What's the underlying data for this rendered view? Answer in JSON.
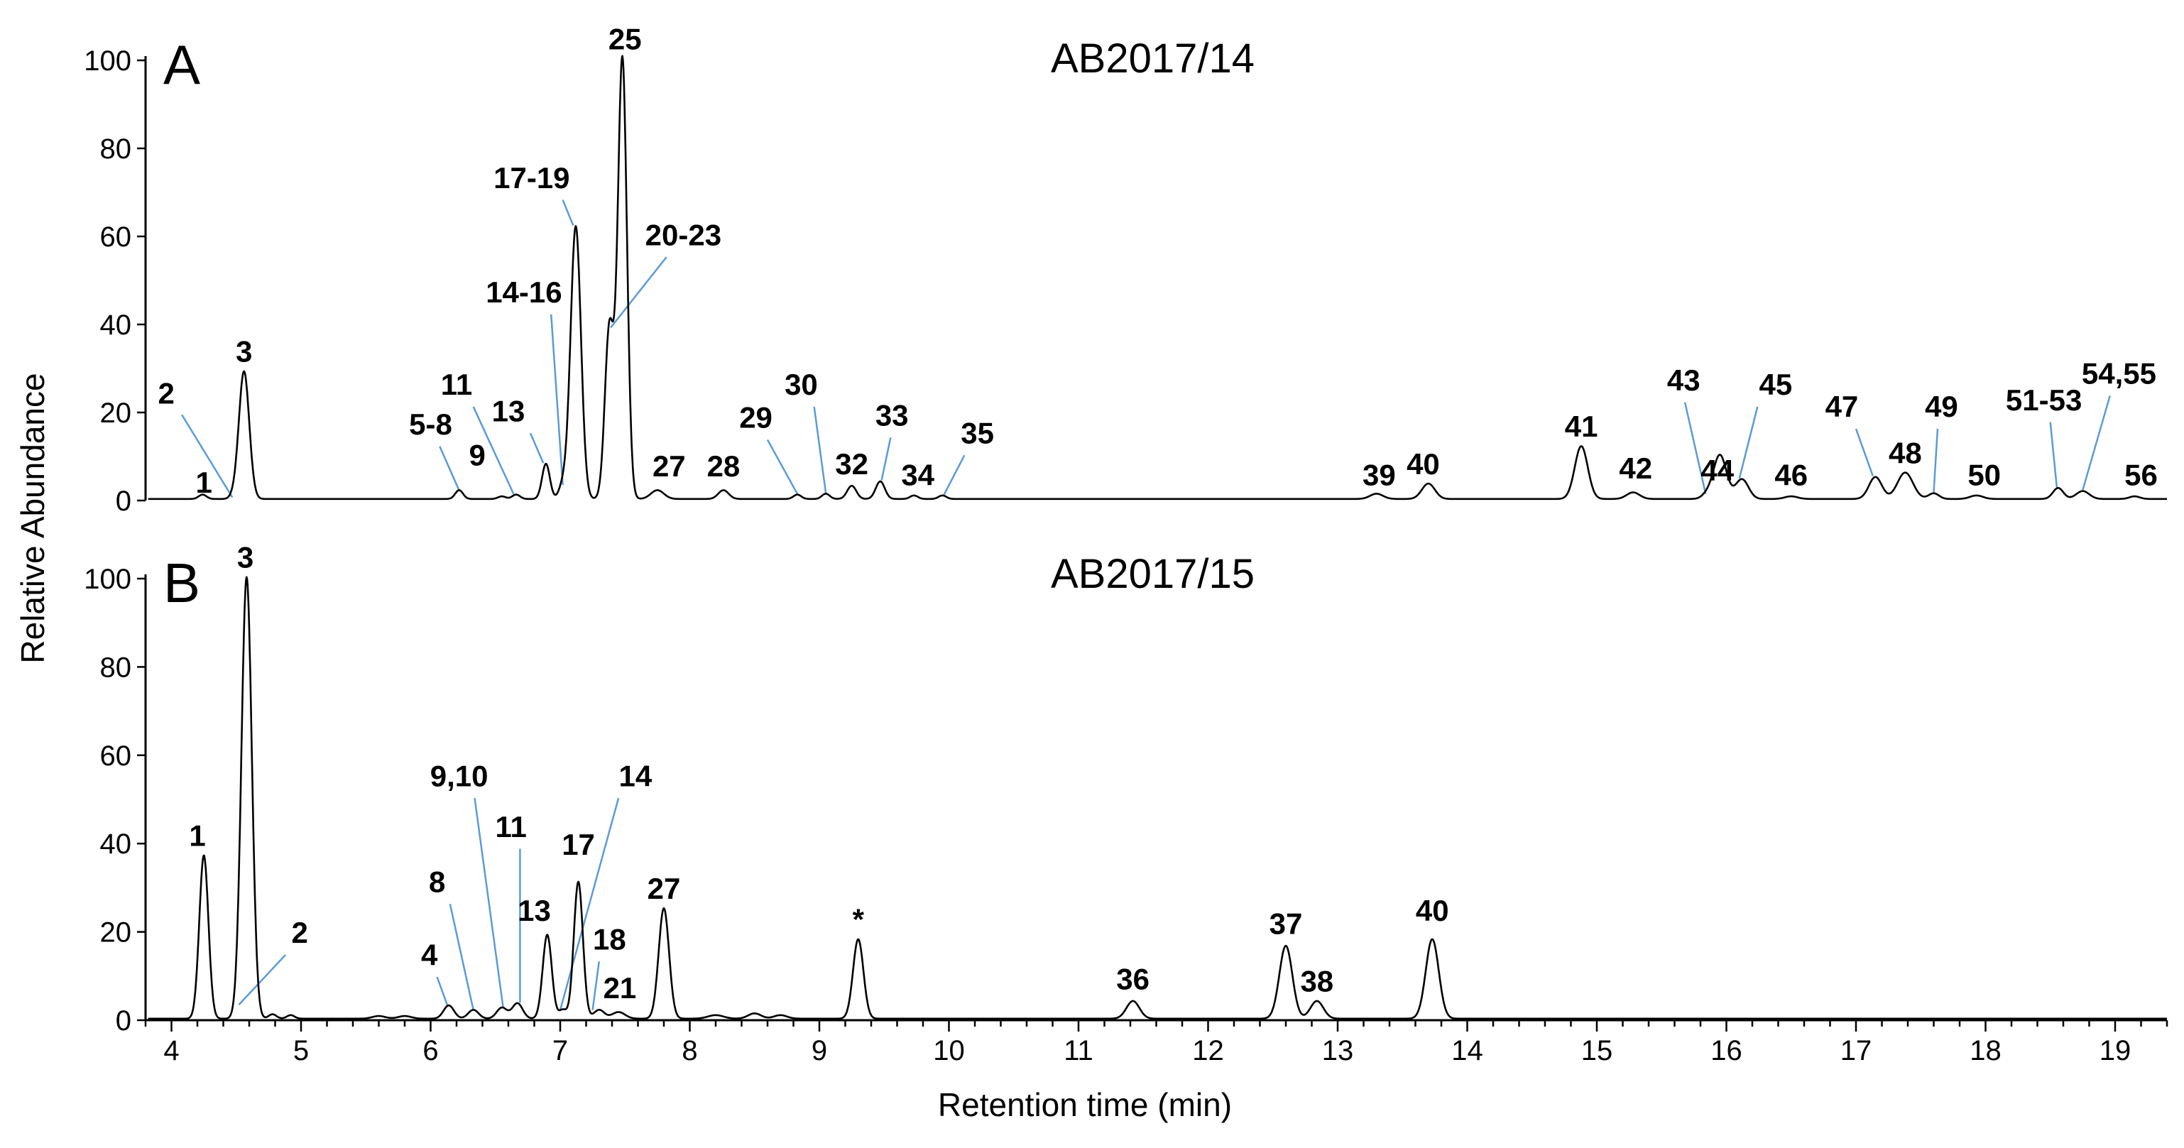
{
  "chart_data": {
    "type": "line",
    "xlabel": "Retention time (min)",
    "ylabel": "Relative Abundance",
    "xlim": [
      3.8,
      19.4
    ],
    "ylim": [
      0,
      100
    ],
    "x_ticks": [
      "4",
      "5",
      "6",
      "7",
      "8",
      "9",
      "10",
      "11",
      "12",
      "13",
      "14",
      "15",
      "16",
      "17",
      "18",
      "19"
    ],
    "y_ticks": [
      "0",
      "20",
      "40",
      "60",
      "80",
      "100"
    ],
    "grid": false,
    "panels": [
      {
        "letter": "A",
        "title": "AB2017/14",
        "peaks": [
          {
            "rt": 4.24,
            "height": 1,
            "width": 0.03
          },
          {
            "rt": 4.48,
            "height": 0.5,
            "width": 0.03
          },
          {
            "rt": 4.56,
            "height": 29,
            "width": 0.04
          },
          {
            "rt": 6.22,
            "height": 2,
            "width": 0.03
          },
          {
            "rt": 6.55,
            "height": 0.6,
            "width": 0.03
          },
          {
            "rt": 6.66,
            "height": 1,
            "width": 0.03
          },
          {
            "rt": 6.89,
            "height": 8,
            "width": 0.03
          },
          {
            "rt": 7.02,
            "height": 3,
            "width": 0.03
          },
          {
            "rt": 7.12,
            "height": 62,
            "width": 0.04
          },
          {
            "rt": 7.38,
            "height": 39,
            "width": 0.035
          },
          {
            "rt": 7.48,
            "height": 100,
            "width": 0.035
          },
          {
            "rt": 7.75,
            "height": 2,
            "width": 0.05
          },
          {
            "rt": 8.26,
            "height": 2,
            "width": 0.04
          },
          {
            "rt": 8.83,
            "height": 1,
            "width": 0.03
          },
          {
            "rt": 9.05,
            "height": 1.2,
            "width": 0.03
          },
          {
            "rt": 9.25,
            "height": 3,
            "width": 0.035
          },
          {
            "rt": 9.47,
            "height": 4,
            "width": 0.035
          },
          {
            "rt": 9.73,
            "height": 0.8,
            "width": 0.03
          },
          {
            "rt": 9.95,
            "height": 0.8,
            "width": 0.03
          },
          {
            "rt": 13.3,
            "height": 1.2,
            "width": 0.05
          },
          {
            "rt": 13.7,
            "height": 3.5,
            "width": 0.05
          },
          {
            "rt": 14.88,
            "height": 12,
            "width": 0.05
          },
          {
            "rt": 15.28,
            "height": 1.5,
            "width": 0.05
          },
          {
            "rt": 15.85,
            "height": 1,
            "width": 0.04
          },
          {
            "rt": 15.95,
            "height": 10,
            "width": 0.05
          },
          {
            "rt": 16.12,
            "height": 4.5,
            "width": 0.05
          },
          {
            "rt": 16.5,
            "height": 0.6,
            "width": 0.05
          },
          {
            "rt": 17.15,
            "height": 5,
            "width": 0.05
          },
          {
            "rt": 17.38,
            "height": 6,
            "width": 0.06
          },
          {
            "rt": 17.6,
            "height": 1.3,
            "width": 0.04
          },
          {
            "rt": 17.93,
            "height": 0.8,
            "width": 0.05
          },
          {
            "rt": 18.56,
            "height": 2.5,
            "width": 0.04
          },
          {
            "rt": 18.75,
            "height": 1.8,
            "width": 0.05
          },
          {
            "rt": 19.15,
            "height": 0.6,
            "width": 0.04
          }
        ],
        "labels": [
          {
            "text": "1",
            "x": 4.25,
            "y": 1.8
          },
          {
            "text": "2",
            "x": 3.96,
            "y": 22,
            "line": [
              4.08,
              19.5,
              4.47,
              0.7
            ]
          },
          {
            "text": "3",
            "x": 4.56,
            "y": 31.5
          },
          {
            "text": "5-8",
            "x": 6.0,
            "y": 15,
            "line": [
              6.07,
              12.3,
              6.22,
              2.3
            ]
          },
          {
            "text": "9",
            "x": 6.36,
            "y": 8
          },
          {
            "text": "11",
            "x": 6.2,
            "y": 24,
            "line": [
              6.33,
              21.3,
              6.64,
              1.5
            ]
          },
          {
            "text": "13",
            "x": 6.6,
            "y": 18,
            "line": [
              6.77,
              15.3,
              6.87,
              8.5
            ]
          },
          {
            "text": "14-16",
            "x": 6.72,
            "y": 45,
            "line": [
              6.93,
              42.3,
              7.02,
              3.5
            ]
          },
          {
            "text": "17-19",
            "x": 6.78,
            "y": 71,
            "line": [
              7.02,
              68.3,
              7.1,
              62.5
            ]
          },
          {
            "text": "20-23",
            "x": 7.95,
            "y": 58,
            "line": [
              7.82,
              55.3,
              7.39,
              39.3
            ]
          },
          {
            "text": "25",
            "x": 7.5,
            "y": 102.5
          },
          {
            "text": "27",
            "x": 7.84,
            "y": 5.5
          },
          {
            "text": "28",
            "x": 8.26,
            "y": 5.5
          },
          {
            "text": "29",
            "x": 8.51,
            "y": 16.5,
            "line": [
              8.6,
              13.8,
              8.83,
              1.5
            ]
          },
          {
            "text": "30",
            "x": 8.86,
            "y": 24,
            "line": [
              8.96,
              21.3,
              9.05,
              1.7
            ]
          },
          {
            "text": "32",
            "x": 9.25,
            "y": 6
          },
          {
            "text": "33",
            "x": 9.56,
            "y": 17,
            "line": [
              9.55,
              14.3,
              9.48,
              4.6
            ]
          },
          {
            "text": "34",
            "x": 9.76,
            "y": 3.5
          },
          {
            "text": "35",
            "x": 10.22,
            "y": 13,
            "line": [
              10.12,
              10.3,
              9.96,
              1.2
            ]
          },
          {
            "text": "39",
            "x": 13.32,
            "y": 3.5
          },
          {
            "text": "40",
            "x": 13.66,
            "y": 6
          },
          {
            "text": "41",
            "x": 14.88,
            "y": 14.5
          },
          {
            "text": "42",
            "x": 15.3,
            "y": 5
          },
          {
            "text": "43",
            "x": 15.67,
            "y": 25,
            "line": [
              15.68,
              22.3,
              15.84,
              1.5
            ]
          },
          {
            "text": "44",
            "x": 15.93,
            "y": 4.5
          },
          {
            "text": "45",
            "x": 16.38,
            "y": 24,
            "line": [
              16.24,
              21.3,
              16.1,
              5
            ]
          },
          {
            "text": "46",
            "x": 16.5,
            "y": 3.5
          },
          {
            "text": "47",
            "x": 16.89,
            "y": 19,
            "line": [
              17.0,
              16.3,
              17.13,
              5.6
            ]
          },
          {
            "text": "48",
            "x": 17.38,
            "y": 8.5
          },
          {
            "text": "49",
            "x": 17.66,
            "y": 19,
            "line": [
              17.63,
              16.3,
              17.6,
              1.9
            ]
          },
          {
            "text": "50",
            "x": 17.99,
            "y": 3.5
          },
          {
            "text": "51-53",
            "x": 18.45,
            "y": 20.5,
            "line": [
              18.5,
              17.8,
              18.55,
              3
            ]
          },
          {
            "text": "54,55",
            "x": 19.03,
            "y": 26.5,
            "line": [
              18.96,
              23.8,
              18.75,
              2.4
            ]
          },
          {
            "text": "56",
            "x": 19.2,
            "y": 3.5
          }
        ]
      },
      {
        "letter": "B",
        "title": "AB2017/15",
        "peaks": [
          {
            "rt": 4.25,
            "height": 37,
            "width": 0.035
          },
          {
            "rt": 4.58,
            "height": 100,
            "width": 0.04
          },
          {
            "rt": 4.78,
            "height": 1,
            "width": 0.03
          },
          {
            "rt": 4.92,
            "height": 0.8,
            "width": 0.03
          },
          {
            "rt": 5.6,
            "height": 0.6,
            "width": 0.05
          },
          {
            "rt": 5.8,
            "height": 0.6,
            "width": 0.05
          },
          {
            "rt": 6.14,
            "height": 3,
            "width": 0.04
          },
          {
            "rt": 6.33,
            "height": 2,
            "width": 0.04
          },
          {
            "rt": 6.55,
            "height": 2.5,
            "width": 0.04
          },
          {
            "rt": 6.67,
            "height": 3.5,
            "width": 0.04
          },
          {
            "rt": 6.9,
            "height": 19,
            "width": 0.035
          },
          {
            "rt": 7.02,
            "height": 2,
            "width": 0.03
          },
          {
            "rt": 7.14,
            "height": 31,
            "width": 0.035
          },
          {
            "rt": 7.3,
            "height": 2,
            "width": 0.04
          },
          {
            "rt": 7.45,
            "height": 1.5,
            "width": 0.05
          },
          {
            "rt": 7.8,
            "height": 25,
            "width": 0.04
          },
          {
            "rt": 8.2,
            "height": 0.8,
            "width": 0.06
          },
          {
            "rt": 8.5,
            "height": 1.2,
            "width": 0.05
          },
          {
            "rt": 8.7,
            "height": 0.8,
            "width": 0.05
          },
          {
            "rt": 9.3,
            "height": 18,
            "width": 0.04
          },
          {
            "rt": 11.42,
            "height": 4,
            "width": 0.05
          },
          {
            "rt": 12.6,
            "height": 16.5,
            "width": 0.05
          },
          {
            "rt": 12.84,
            "height": 4,
            "width": 0.05
          },
          {
            "rt": 13.73,
            "height": 18,
            "width": 0.05
          }
        ],
        "labels": [
          {
            "text": "1",
            "x": 4.2,
            "y": 39.5
          },
          {
            "text": "2",
            "x": 4.99,
            "y": 17.5,
            "line": [
              4.88,
              14.8,
              4.52,
              3.5
            ]
          },
          {
            "text": "3",
            "x": 4.57,
            "y": 102.5
          },
          {
            "text": "4",
            "x": 5.99,
            "y": 12.5,
            "line": [
              6.05,
              9.8,
              6.13,
              3.3
            ]
          },
          {
            "text": "8",
            "x": 6.05,
            "y": 29,
            "line": [
              6.15,
              26.3,
              6.33,
              2.3
            ]
          },
          {
            "text": "9,10",
            "x": 6.22,
            "y": 53,
            "line": [
              6.34,
              50.3,
              6.56,
              2.8
            ]
          },
          {
            "text": "11",
            "x": 6.62,
            "y": 41.5,
            "line": [
              6.69,
              38.8,
              6.69,
              4
            ]
          },
          {
            "text": "13",
            "x": 6.8,
            "y": 22.5
          },
          {
            "text": "14",
            "x": 7.58,
            "y": 53,
            "line": [
              7.45,
              50.3,
              7.0,
              2.3
            ]
          },
          {
            "text": "17",
            "x": 7.14,
            "y": 37.5
          },
          {
            "text": "18",
            "x": 7.38,
            "y": 16,
            "line": [
              7.3,
              13.3,
              7.25,
              2.3
            ]
          },
          {
            "text": "21",
            "x": 7.46,
            "y": 5
          },
          {
            "text": "27",
            "x": 7.8,
            "y": 27.5
          },
          {
            "text": "*",
            "x": 9.3,
            "y": 20.5
          },
          {
            "text": "36",
            "x": 11.42,
            "y": 7
          },
          {
            "text": "37",
            "x": 12.6,
            "y": 19.5
          },
          {
            "text": "38",
            "x": 12.84,
            "y": 6.5
          },
          {
            "text": "40",
            "x": 13.73,
            "y": 22.5
          }
        ]
      }
    ]
  }
}
